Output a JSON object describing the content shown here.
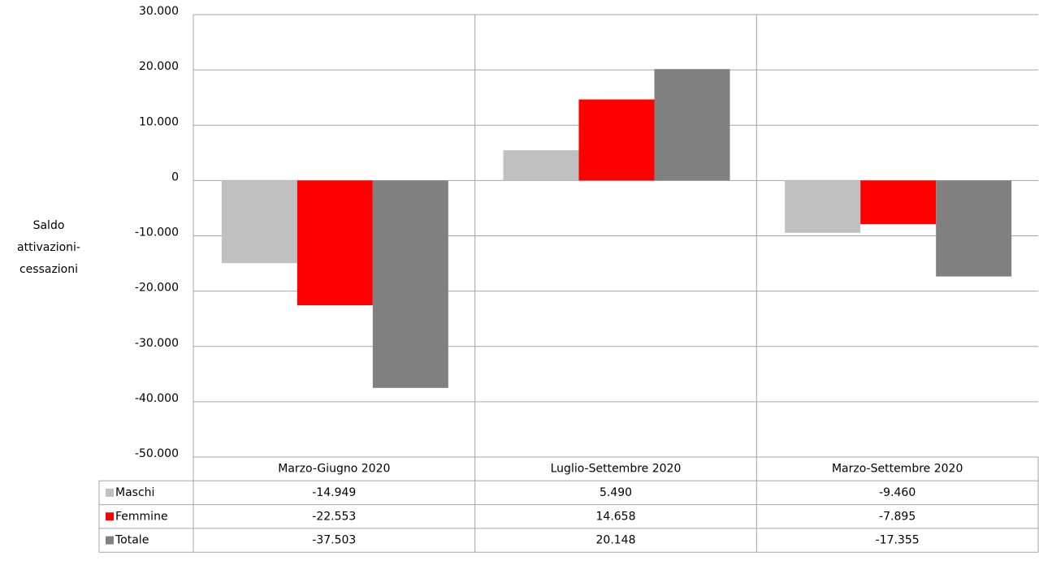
{
  "chart_data": {
    "type": "bar",
    "y_label": [
      "Saldo",
      "attivazioni-",
      "cessazioni"
    ],
    "categories": [
      "Marzo-Giugno 2020",
      "Luglio-Settembre 2020",
      "Marzo-Settembre 2020"
    ],
    "series": [
      {
        "name": "Maschi",
        "color": "#c0c0c0",
        "values": [
          -14949,
          5490,
          -9460
        ],
        "value_labels": [
          "-14.949",
          "5.490",
          "-9.460"
        ]
      },
      {
        "name": "Femmine",
        "color": "#ff0000",
        "values": [
          -22553,
          14658,
          -7895
        ],
        "value_labels": [
          "-22.553",
          "14.658",
          "-7.895"
        ]
      },
      {
        "name": "Totale",
        "color": "#808080",
        "values": [
          -37503,
          20148,
          -17355
        ],
        "value_labels": [
          "-37.503",
          "20.148",
          "-17.355"
        ]
      }
    ],
    "ylim": [
      -50000,
      30000
    ],
    "yticks": [
      {
        "value": -50000,
        "label": "-50.000"
      },
      {
        "value": -40000,
        "label": "-40.000"
      },
      {
        "value": -30000,
        "label": "-30.000"
      },
      {
        "value": -20000,
        "label": "-20.000"
      },
      {
        "value": -10000,
        "label": "-10.000"
      },
      0,
      {
        "value": 10000,
        "label": "10.000"
      },
      {
        "value": 20000,
        "label": "20.000"
      },
      {
        "value": 30000,
        "label": "30.000"
      }
    ],
    "grid": true
  }
}
